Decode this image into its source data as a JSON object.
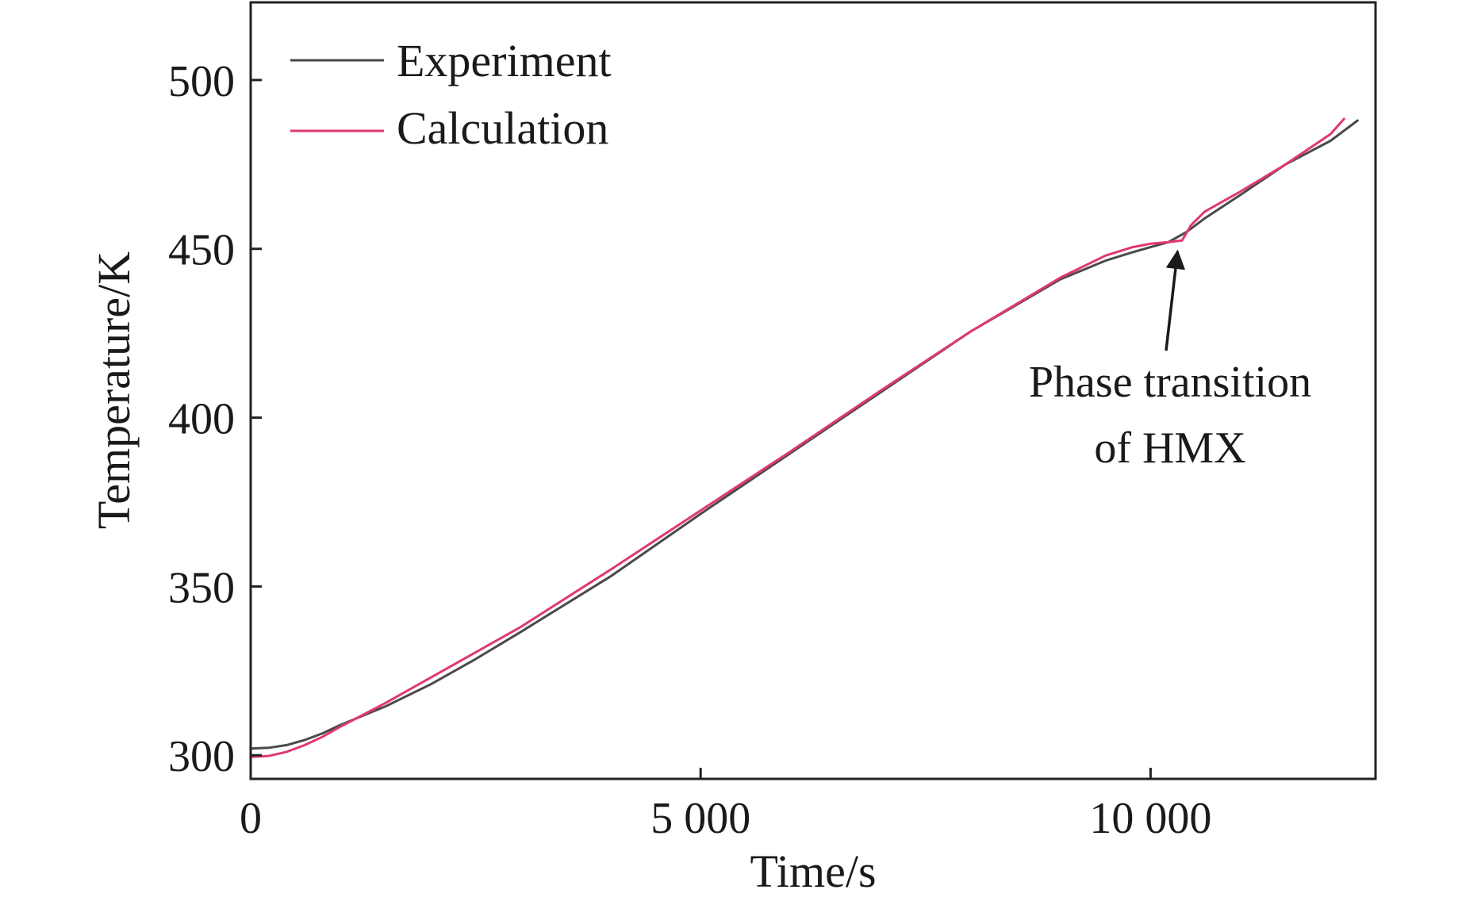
{
  "chart_data": {
    "type": "line",
    "xlabel": "Time/s",
    "ylabel": "Temperature/K",
    "xlim": [
      0,
      12500
    ],
    "ylim": [
      293,
      523
    ],
    "x_ticks": [
      0,
      5000,
      10000
    ],
    "x_tick_labels": [
      "0",
      "5 000",
      "10 000"
    ],
    "y_ticks": [
      300,
      350,
      400,
      450,
      500
    ],
    "y_tick_labels": [
      "300",
      "350",
      "400",
      "450",
      "500"
    ],
    "grid": false,
    "legend_position": "top-left",
    "series": [
      {
        "name": "Experiment",
        "color": "#4a4a4a",
        "x": [
          0,
          200,
          400,
          600,
          800,
          1000,
          1500,
          2000,
          2500,
          3000,
          4000,
          5000,
          6000,
          7000,
          8000,
          9000,
          9500,
          9800,
          10000,
          10200,
          10400,
          10600,
          11000,
          11500,
          12000,
          12300
        ],
        "y": [
          302,
          302.2,
          303,
          304.5,
          306.5,
          309,
          314.5,
          321,
          328.5,
          336.5,
          353,
          371.5,
          389.5,
          407.5,
          425.5,
          441,
          446.5,
          449,
          450.5,
          452,
          455,
          459,
          466,
          475,
          482,
          488
        ]
      },
      {
        "name": "Calculation",
        "color": "#e0396b",
        "x": [
          0,
          200,
          400,
          600,
          800,
          1000,
          1500,
          2000,
          2500,
          3000,
          4000,
          5000,
          6000,
          7000,
          8000,
          9000,
          9500,
          9800,
          10000,
          10200,
          10350,
          10450,
          10600,
          11000,
          11500,
          12000,
          12150
        ],
        "y": [
          299.5,
          299.8,
          301,
          303,
          305.5,
          308.5,
          315.5,
          323,
          330.5,
          338,
          355,
          372.5,
          390,
          408,
          425.5,
          441.5,
          448,
          450.5,
          451.5,
          452,
          452.5,
          457,
          461,
          467,
          475,
          484,
          488.5
        ]
      }
    ],
    "annotations": [
      {
        "text_lines": [
          "Phase transition",
          "of HMX"
        ],
        "arrow_to": [
          10300,
          453
        ]
      }
    ]
  }
}
